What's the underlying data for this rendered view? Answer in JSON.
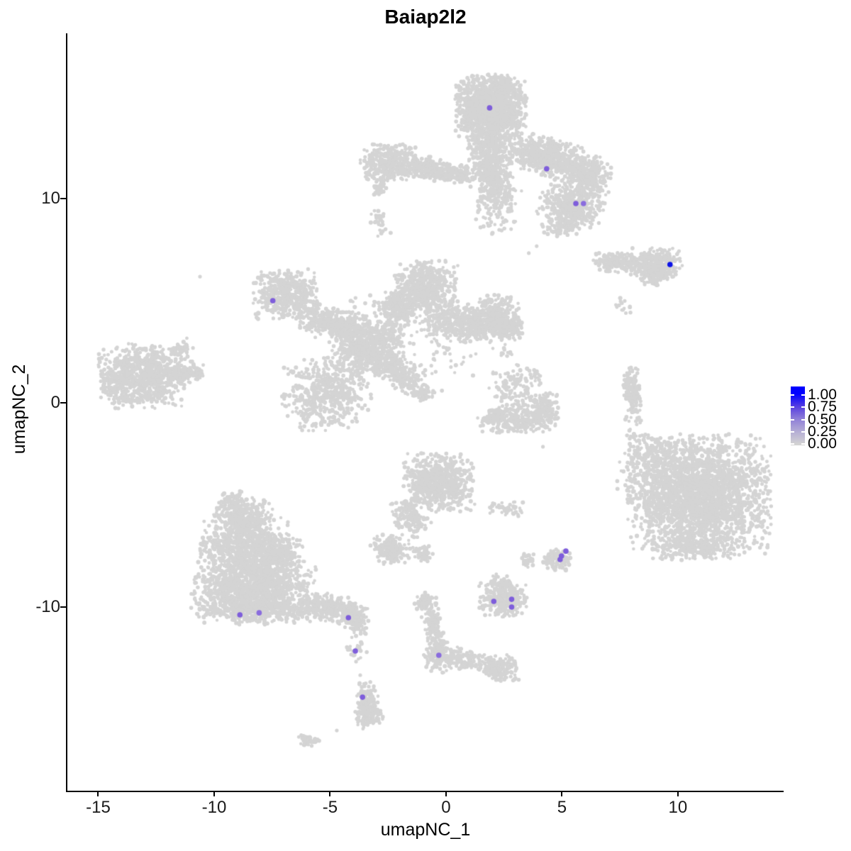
{
  "chart_data": {
    "type": "scatter",
    "title": "Baiap2l2",
    "xlabel": "umapNC_1",
    "ylabel": "umapNC_2",
    "xlim": [
      -16.33,
      14.56
    ],
    "ylim": [
      -18.99,
      18.09
    ],
    "x_ticks": [
      {
        "value": -15,
        "label": "-15"
      },
      {
        "value": -10,
        "label": "-10"
      },
      {
        "value": -5,
        "label": "-5"
      },
      {
        "value": 0,
        "label": "0"
      },
      {
        "value": 5,
        "label": "5"
      },
      {
        "value": 10,
        "label": "10"
      }
    ],
    "y_ticks": [
      {
        "value": 10,
        "label": "10"
      },
      {
        "value": 0,
        "label": "0"
      },
      {
        "value": -10,
        "label": "-10"
      }
    ],
    "grid": false,
    "legend": {
      "position": "right",
      "labels": [
        {
          "value": 1.0,
          "label": "1.00"
        },
        {
          "value": 0.75,
          "label": "0.75"
        },
        {
          "value": 0.5,
          "label": "0.50"
        },
        {
          "value": 0.25,
          "label": "0.25"
        },
        {
          "value": 0.0,
          "label": "0.00"
        }
      ],
      "gradient_low": "#D3D3D3",
      "gradient_high": "#0000FF"
    },
    "colors": {
      "background_cells": "#D4D4D4",
      "low": "#D3D3D3",
      "high": "#0000FF",
      "axis": "#000000"
    },
    "background_cells": {
      "description": "non-expressing cells rendered as gaussian blobs [x, y, sigma_x, sigma_y, rotation_deg, n_points]",
      "point_radius": 2.6,
      "clusters": [
        [
          1.94,
          14.51,
          0.74,
          0.76,
          0,
          1400
        ],
        [
          1.78,
          12.26,
          0.4,
          0.69,
          0,
          350
        ],
        [
          2.15,
          10.87,
          0.37,
          0.63,
          0,
          250
        ],
        [
          4.46,
          12.01,
          1.08,
          0.45,
          -20,
          600
        ],
        [
          6.15,
          11.04,
          0.46,
          0.45,
          0,
          250
        ],
        [
          5.38,
          9.65,
          0.68,
          0.49,
          -15,
          400
        ],
        [
          2.15,
          9.65,
          0.55,
          0.76,
          0,
          120
        ],
        [
          4.92,
          8.61,
          0.43,
          0.28,
          0,
          80
        ],
        [
          -2.4,
          11.74,
          0.62,
          0.45,
          0,
          380
        ],
        [
          -0.62,
          11.46,
          0.68,
          0.28,
          -8,
          220
        ],
        [
          0.62,
          11.22,
          0.43,
          0.21,
          0,
          90
        ],
        [
          -2.86,
          10.63,
          0.15,
          0.24,
          0,
          40
        ],
        [
          -2.86,
          8.85,
          0.18,
          0.35,
          20,
          35
        ],
        [
          -3.41,
          11.15,
          0.09,
          0.1,
          0,
          8
        ],
        [
          7.32,
          6.88,
          0.46,
          0.24,
          0,
          180
        ],
        [
          9.07,
          6.81,
          0.55,
          0.38,
          0,
          350
        ],
        [
          8.92,
          6.04,
          0.25,
          0.24,
          45,
          50
        ],
        [
          7.69,
          4.79,
          0.25,
          0.21,
          0,
          12
        ],
        [
          -6.92,
          5.31,
          0.68,
          0.59,
          0,
          450
        ],
        [
          -5.07,
          3.92,
          0.68,
          0.42,
          -20,
          280
        ],
        [
          -3.38,
          2.71,
          0.77,
          0.69,
          0,
          600
        ],
        [
          -0.92,
          5.66,
          0.68,
          0.63,
          0,
          550
        ],
        [
          -2.0,
          4.62,
          0.37,
          0.42,
          0,
          180
        ],
        [
          0.77,
          3.92,
          0.92,
          0.49,
          -10,
          450
        ],
        [
          2.15,
          4.27,
          0.49,
          0.49,
          0,
          280
        ],
        [
          2.71,
          3.68,
          0.31,
          0.31,
          0,
          120
        ],
        [
          -5.14,
          0.45,
          0.92,
          0.87,
          0,
          550
        ],
        [
          -2.0,
          1.49,
          0.68,
          0.38,
          -35,
          250
        ],
        [
          -2.77,
          3.75,
          0.92,
          0.87,
          0,
          150
        ],
        [
          -1.01,
          0.52,
          0.22,
          0.21,
          0,
          60
        ],
        [
          0.15,
          2.19,
          0.62,
          0.87,
          0,
          40
        ],
        [
          -13.07,
          1.32,
          0.92,
          0.76,
          0,
          800
        ],
        [
          -11.32,
          1.49,
          0.43,
          0.28,
          10,
          120
        ],
        [
          -10.7,
          1.39,
          0.15,
          0.14,
          0,
          25
        ],
        [
          -11.44,
          2.64,
          0.25,
          0.17,
          30,
          40
        ],
        [
          -14.3,
          0.8,
          0.31,
          0.42,
          0,
          80
        ],
        [
          3.01,
          0.8,
          0.55,
          0.56,
          0,
          140
        ],
        [
          3.08,
          -0.83,
          0.86,
          0.31,
          0,
          260
        ],
        [
          2.15,
          -0.59,
          0.18,
          0.21,
          0,
          40
        ],
        [
          4.24,
          -0.24,
          0.31,
          0.38,
          0,
          110
        ],
        [
          2.58,
          2.47,
          0.15,
          0.21,
          0,
          10
        ],
        [
          8.09,
          0.35,
          0.15,
          0.69,
          0,
          130
        ],
        [
          7.81,
          0.8,
          0.09,
          0.35,
          0,
          40
        ],
        [
          8.3,
          -1.81,
          0.31,
          0.87,
          0,
          25
        ],
        [
          10.92,
          -4.58,
          1.48,
          1.46,
          0,
          2600
        ],
        [
          8.46,
          -3.19,
          0.55,
          0.87,
          0,
          120
        ],
        [
          9.23,
          -2.33,
          0.37,
          0.35,
          0,
          60
        ],
        [
          10.76,
          -7.19,
          0.92,
          0.28,
          0,
          150
        ],
        [
          -0.31,
          -3.89,
          0.74,
          0.69,
          0,
          650
        ],
        [
          -1.54,
          -5.56,
          0.37,
          0.49,
          30,
          150
        ],
        [
          -2.4,
          -7.19,
          0.43,
          0.35,
          0,
          180
        ],
        [
          -1.01,
          -7.36,
          0.22,
          0.21,
          0,
          40
        ],
        [
          2.61,
          -5.21,
          0.37,
          0.17,
          0,
          45
        ],
        [
          -8.76,
          -5.63,
          0.62,
          0.49,
          0,
          300
        ],
        [
          -8.61,
          -7.19,
          0.98,
          0.76,
          0,
          800
        ],
        [
          -8.3,
          -9.1,
          1.29,
          0.69,
          0,
          1000
        ],
        [
          -8.3,
          -10.14,
          1.17,
          0.35,
          0,
          400
        ],
        [
          -5.38,
          -9.97,
          0.77,
          0.35,
          -8,
          280
        ],
        [
          -4.0,
          -10.42,
          0.31,
          0.28,
          0,
          120
        ],
        [
          -9.23,
          -4.76,
          0.31,
          0.28,
          0,
          50
        ],
        [
          -7.07,
          -7.71,
          0.46,
          0.63,
          0,
          200
        ],
        [
          -3.79,
          -11.01,
          0.18,
          0.21,
          0,
          40
        ],
        [
          -3.79,
          -12.05,
          0.24,
          0.35,
          0,
          22
        ],
        [
          -3.43,
          -14.76,
          0.24,
          0.52,
          0,
          150
        ],
        [
          -3.3,
          -15.35,
          0.28,
          0.31,
          0,
          80
        ],
        [
          -5.93,
          -16.53,
          0.24,
          0.14,
          -20,
          45
        ],
        [
          -0.62,
          -10.66,
          0.22,
          0.63,
          10,
          140
        ],
        [
          -0.37,
          -12.4,
          0.31,
          0.42,
          0,
          120
        ],
        [
          0.86,
          -12.57,
          0.68,
          0.28,
          -12,
          130
        ],
        [
          2.31,
          -12.99,
          0.43,
          0.31,
          0,
          140
        ],
        [
          -0.92,
          -9.72,
          0.25,
          0.21,
          0,
          60
        ],
        [
          2.46,
          -9.62,
          0.52,
          0.42,
          0,
          280
        ],
        [
          2.31,
          -8.82,
          0.25,
          0.21,
          0,
          40
        ],
        [
          4.92,
          -7.64,
          0.28,
          0.28,
          0,
          90
        ],
        [
          4.4,
          -7.78,
          0.15,
          0.17,
          0,
          25
        ],
        [
          3.51,
          -7.78,
          0.15,
          0.21,
          0,
          30
        ]
      ],
      "singles": [
        [
          -10.61,
          6.18
        ],
        [
          2.52,
          2.6
        ],
        [
          2.64,
          2.29
        ],
        [
          4.18,
          -2.15
        ],
        [
          -4.71,
          -16.04
        ],
        [
          -0.71,
          -11.81
        ],
        [
          7.53,
          4.97
        ],
        [
          7.93,
          4.72
        ],
        [
          7.63,
          4.55
        ],
        [
          3.91,
          7.67
        ],
        [
          3.57,
          7.33
        ],
        [
          -3.88,
          -12.67
        ],
        [
          -3.7,
          -13.33
        ]
      ]
    },
    "expressing_cells": {
      "description": "cells with Baiap2l2 expression [x, y, value, color]",
      "point_radius": 3.8,
      "points": [
        [
          1.88,
          14.44,
          0.5,
          "#7E5DDB"
        ],
        [
          4.34,
          11.46,
          0.5,
          "#7E5DDB"
        ],
        [
          5.6,
          9.76,
          0.5,
          "#7E5DDB"
        ],
        [
          5.93,
          9.76,
          0.45,
          "#8A6CDE"
        ],
        [
          9.66,
          6.77,
          1.0,
          "#0B12E8"
        ],
        [
          -7.47,
          5.0,
          0.5,
          "#7E5DDB"
        ],
        [
          5.17,
          -7.26,
          0.5,
          "#7E5DDB"
        ],
        [
          4.98,
          -7.5,
          0.5,
          "#7E5DDB"
        ],
        [
          4.92,
          -7.67,
          0.5,
          "#7E5DDB"
        ],
        [
          2.06,
          -9.72,
          0.5,
          "#7E5DDB"
        ],
        [
          2.83,
          -9.62,
          0.5,
          "#7E5DDB"
        ],
        [
          2.83,
          -10.0,
          0.5,
          "#7E5DDB"
        ],
        [
          -8.89,
          -10.38,
          0.5,
          "#7E5DDB"
        ],
        [
          -8.06,
          -10.28,
          0.45,
          "#8A6CDE"
        ],
        [
          -4.21,
          -10.52,
          0.5,
          "#7E5DDB"
        ],
        [
          -3.91,
          -12.15,
          0.5,
          "#7E5DDB"
        ],
        [
          -3.6,
          -14.41,
          0.5,
          "#7E5DDB"
        ],
        [
          -0.31,
          -12.36,
          0.45,
          "#8A6CDE"
        ]
      ]
    }
  }
}
